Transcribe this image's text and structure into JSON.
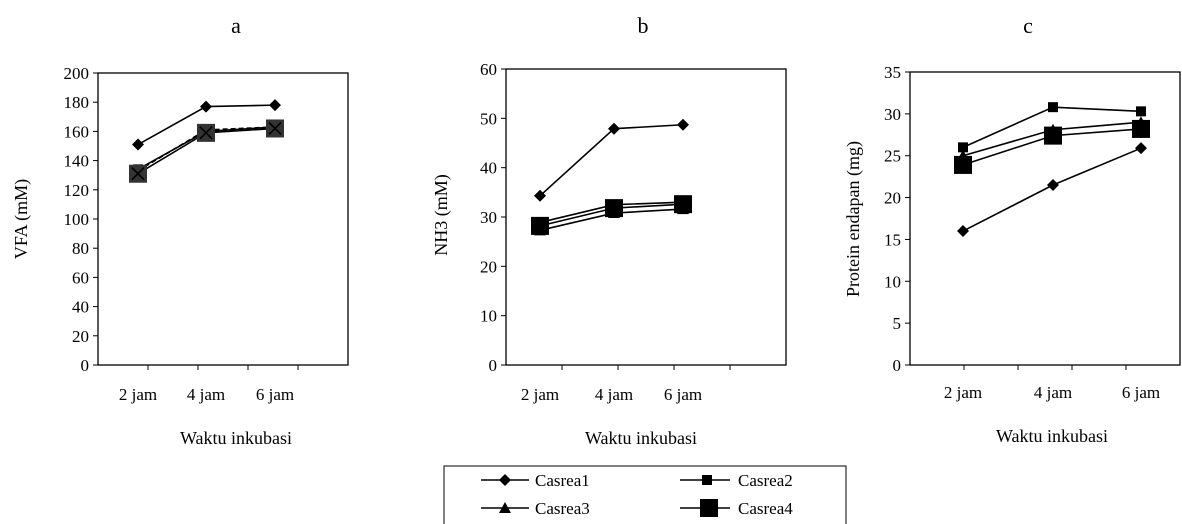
{
  "chart_data": [
    {
      "type": "line",
      "panel_label": "a",
      "categories": [
        "2 jam",
        "4 jam",
        "6 jam"
      ],
      "xlabel": "Waktu inkubasi",
      "ylabel": "VFA (mM)",
      "ylim": [
        0,
        200
      ],
      "ytick_step": 20,
      "yticks": [
        "0",
        "20",
        "40",
        "60",
        "80",
        "100",
        "120",
        "140",
        "160",
        "180",
        "200"
      ],
      "series": [
        {
          "name": "Casrea1",
          "marker": "diamond",
          "values": [
            151,
            177,
            178
          ]
        },
        {
          "name": "Casrea2",
          "marker": "square",
          "values": [
            134,
            160,
            163
          ]
        },
        {
          "name": "Casrea3",
          "marker": "triangle",
          "values": [
            133,
            161,
            163
          ]
        },
        {
          "name": "Casrea4",
          "marker": "square-large",
          "values": [
            131,
            159,
            162
          ]
        }
      ]
    },
    {
      "type": "line",
      "panel_label": "b",
      "categories": [
        "2 jam",
        "4 jam",
        "6 jam"
      ],
      "xlabel": "Waktu inkubasi",
      "ylabel": "NH3 (mM)",
      "ylim": [
        0,
        60
      ],
      "ytick_step": 10,
      "yticks": [
        "0",
        "10",
        "20",
        "30",
        "40",
        "50",
        "60"
      ],
      "series": [
        {
          "name": "Casrea1",
          "marker": "diamond",
          "values": [
            34.3,
            47.9,
            48.7
          ]
        },
        {
          "name": "Casrea2",
          "marker": "square",
          "values": [
            28.9,
            32.5,
            33.0
          ]
        },
        {
          "name": "Casrea3",
          "marker": "triangle",
          "values": [
            27.3,
            30.8,
            31.6
          ]
        },
        {
          "name": "Casrea4",
          "marker": "square-large",
          "values": [
            28.2,
            31.8,
            32.6
          ]
        }
      ]
    },
    {
      "type": "line",
      "panel_label": "c",
      "categories": [
        "2 jam",
        "4 jam",
        "6 jam"
      ],
      "xlabel": "Waktu inkubasi",
      "ylabel": "Protein endapan (mg)",
      "ylim": [
        0,
        35
      ],
      "ytick_step": 5,
      "yticks": [
        "0",
        "5",
        "10",
        "15",
        "20",
        "25",
        "30",
        "35"
      ],
      "series": [
        {
          "name": "Casrea1",
          "marker": "diamond",
          "values": [
            16.0,
            21.5,
            25.9
          ]
        },
        {
          "name": "Casrea2",
          "marker": "square",
          "values": [
            26.0,
            30.8,
            30.3
          ]
        },
        {
          "name": "Casrea3",
          "marker": "triangle",
          "values": [
            25.0,
            28.1,
            29.0
          ]
        },
        {
          "name": "Casrea4",
          "marker": "square-large",
          "values": [
            23.9,
            27.4,
            28.2
          ]
        }
      ]
    }
  ],
  "legend": {
    "placement": "bottom-center",
    "entries": [
      {
        "name": "Casrea1",
        "marker": "diamond"
      },
      {
        "name": "Casrea2",
        "marker": "square"
      },
      {
        "name": "Casrea3",
        "marker": "triangle"
      },
      {
        "name": "Casrea4",
        "marker": "square-large"
      }
    ]
  },
  "colors": {
    "line": "#000000",
    "marker": "#000000",
    "casrea4_panel_a": "#333333"
  }
}
